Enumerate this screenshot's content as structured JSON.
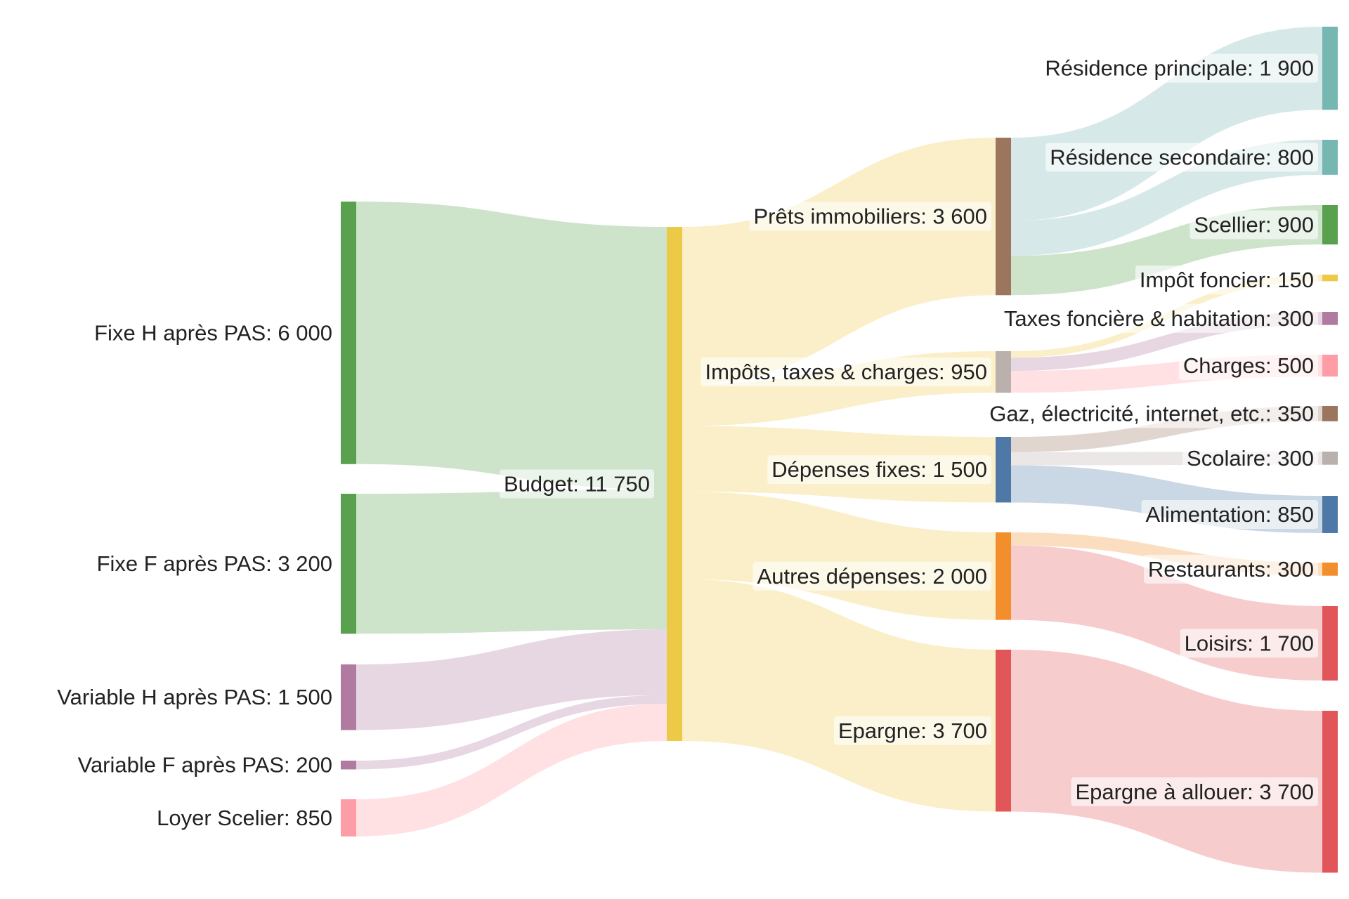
{
  "chart_data": {
    "type": "sankey",
    "nodes": [
      {
        "id": "fixe_h",
        "label": "Fixe H après PAS: 6 000",
        "value": 6000,
        "color": "#59A14F"
      },
      {
        "id": "fixe_f",
        "label": "Fixe F après PAS: 3 200",
        "value": 3200,
        "color": "#59A14F"
      },
      {
        "id": "var_h",
        "label": "Variable H après PAS: 1 500",
        "value": 1500,
        "color": "#B07AA1"
      },
      {
        "id": "var_f",
        "label": "Variable F après PAS: 200",
        "value": 200,
        "color": "#B07AA1"
      },
      {
        "id": "loyer",
        "label": "Loyer Scelier: 850",
        "value": 850,
        "color": "#FF9DA7"
      },
      {
        "id": "budget",
        "label": "Budget: 11 750",
        "value": 11750,
        "color": "#EDC948"
      },
      {
        "id": "prets",
        "label": "Prêts immobiliers: 3 600",
        "value": 3600,
        "color": "#9C755F"
      },
      {
        "id": "impots",
        "label": "Impôts, taxes & charges: 950",
        "value": 950,
        "color": "#BAB0AC"
      },
      {
        "id": "depfixes",
        "label": "Dépenses fixes: 1 500",
        "value": 1500,
        "color": "#4E79A7"
      },
      {
        "id": "autres",
        "label": "Autres dépenses: 2 000",
        "value": 2000,
        "color": "#F28E2B"
      },
      {
        "id": "epargne",
        "label": "Epargne: 3 700",
        "value": 3700,
        "color": "#E15759"
      },
      {
        "id": "rp",
        "label": "Résidence principale: 1 900",
        "value": 1900,
        "color": "#76B7B2"
      },
      {
        "id": "rs",
        "label": "Résidence secondaire: 800",
        "value": 800,
        "color": "#76B7B2"
      },
      {
        "id": "scellier",
        "label": "Scellier: 900",
        "value": 900,
        "color": "#59A14F"
      },
      {
        "id": "impotf",
        "label": "Impôt foncier: 150",
        "value": 150,
        "color": "#EDC948"
      },
      {
        "id": "taxes",
        "label": "Taxes foncière & habitation: 300",
        "value": 300,
        "color": "#B07AA1"
      },
      {
        "id": "charges",
        "label": "Charges: 500",
        "value": 500,
        "color": "#FF9DA7"
      },
      {
        "id": "gaz",
        "label": "Gaz, électricité, internet, etc.: 350",
        "value": 350,
        "color": "#9C755F"
      },
      {
        "id": "scolaire",
        "label": "Scolaire: 300",
        "value": 300,
        "color": "#BAB0AC"
      },
      {
        "id": "alim",
        "label": "Alimentation: 850",
        "value": 850,
        "color": "#4E79A7"
      },
      {
        "id": "resto",
        "label": "Restaurants: 300",
        "value": 300,
        "color": "#F28E2B"
      },
      {
        "id": "loisirs",
        "label": "Loisirs: 1 700",
        "value": 1700,
        "color": "#E15759"
      },
      {
        "id": "epalloc",
        "label": "Epargne à allouer: 3 700",
        "value": 3700,
        "color": "#E15759"
      }
    ],
    "links": [
      {
        "source": "fixe_h",
        "target": "budget",
        "value": 6000
      },
      {
        "source": "fixe_f",
        "target": "budget",
        "value": 3200
      },
      {
        "source": "var_h",
        "target": "budget",
        "value": 1500
      },
      {
        "source": "var_f",
        "target": "budget",
        "value": 200
      },
      {
        "source": "loyer",
        "target": "budget",
        "value": 850
      },
      {
        "source": "budget",
        "target": "prets",
        "value": 3600
      },
      {
        "source": "budget",
        "target": "impots",
        "value": 950
      },
      {
        "source": "budget",
        "target": "depfixes",
        "value": 1500
      },
      {
        "source": "budget",
        "target": "autres",
        "value": 2000
      },
      {
        "source": "budget",
        "target": "epargne",
        "value": 3700
      },
      {
        "source": "prets",
        "target": "rp",
        "value": 1900
      },
      {
        "source": "prets",
        "target": "rs",
        "value": 800
      },
      {
        "source": "prets",
        "target": "scellier",
        "value": 900
      },
      {
        "source": "impots",
        "target": "impotf",
        "value": 150
      },
      {
        "source": "impots",
        "target": "taxes",
        "value": 300
      },
      {
        "source": "impots",
        "target": "charges",
        "value": 500
      },
      {
        "source": "depfixes",
        "target": "gaz",
        "value": 350
      },
      {
        "source": "depfixes",
        "target": "scolaire",
        "value": 300
      },
      {
        "source": "depfixes",
        "target": "alim",
        "value": 850
      },
      {
        "source": "autres",
        "target": "resto",
        "value": 300
      },
      {
        "source": "autres",
        "target": "loisirs",
        "value": 1700
      },
      {
        "source": "epargne",
        "target": "epalloc",
        "value": 3700
      }
    ]
  }
}
